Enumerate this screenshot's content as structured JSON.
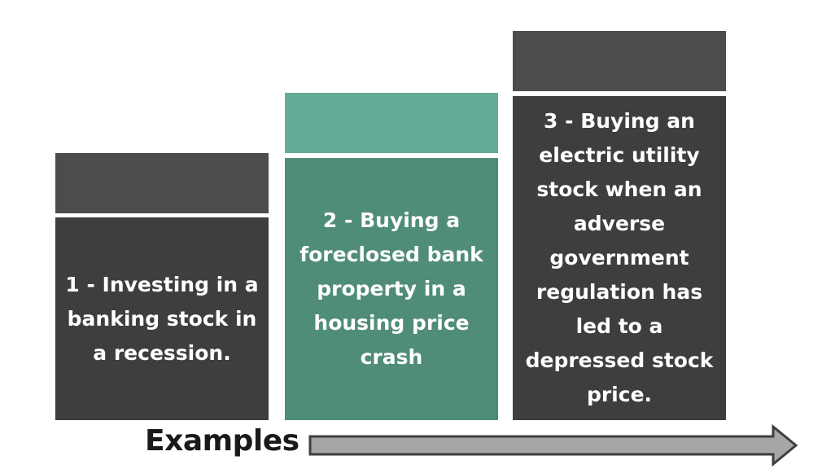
{
  "blocks": [
    {
      "text": "1 - Investing in a banking stock in a recession.",
      "cap_color": "#4b4c4b",
      "body_color": "#3d3e3d"
    },
    {
      "text": "2 - Buying a foreclosed bank property in a housing price crash",
      "cap_color": "#66ab98",
      "body_color": "#4f8c79"
    },
    {
      "text": "3 - Buying an electric utility stock when an adverse government regulation has led to a depressed stock price.",
      "cap_color": "#4b4c4b",
      "body_color": "#3d3e3d"
    }
  ],
  "axis": {
    "label": "Examples",
    "arrow_fill": "#a6a6a6",
    "arrow_stroke": "#3d3e3d"
  }
}
